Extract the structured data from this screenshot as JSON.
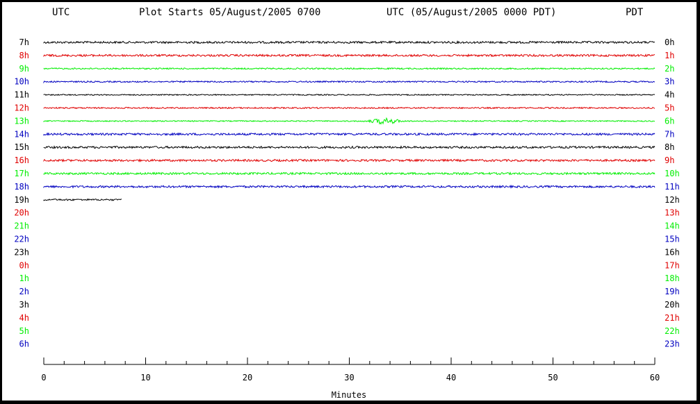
{
  "header": {
    "left_tz": "UTC",
    "plot_start": "Plot Starts 05/August/2005 0700",
    "utc_pdt": "UTC (05/August/2005 0000 PDT)",
    "right_tz": "PDT"
  },
  "colors": {
    "black": "#000000",
    "red": "#e00000",
    "green": "#00ee00",
    "blue": "#0000c0"
  },
  "chart_data": {
    "type": "line",
    "title": "Plot Starts 05/August/2005 0700",
    "xlabel": "Minutes",
    "xlim": [
      0,
      60
    ],
    "x_ticks": [
      "0",
      "10",
      "20",
      "30",
      "40",
      "50",
      "60"
    ],
    "rows": [
      {
        "left": "7h",
        "right": "0h",
        "color": "black",
        "end_minute": 60,
        "amplitude": 1.5
      },
      {
        "left": "8h",
        "right": "1h",
        "color": "red",
        "end_minute": 60,
        "amplitude": 1.5
      },
      {
        "left": "9h",
        "right": "2h",
        "color": "green",
        "end_minute": 60,
        "amplitude": 1.0
      },
      {
        "left": "10h",
        "right": "3h",
        "color": "blue",
        "end_minute": 60,
        "amplitude": 1.0
      },
      {
        "left": "11h",
        "right": "4h",
        "color": "black",
        "end_minute": 60,
        "amplitude": 0.8
      },
      {
        "left": "12h",
        "right": "5h",
        "color": "red",
        "end_minute": 60,
        "amplitude": 1.0
      },
      {
        "left": "13h",
        "right": "6h",
        "color": "green",
        "end_minute": 60,
        "amplitude": 0.8,
        "event": {
          "minute": 33.5,
          "width": 1.8,
          "amplitude": 4
        }
      },
      {
        "left": "14h",
        "right": "7h",
        "color": "blue",
        "end_minute": 60,
        "amplitude": 1.5
      },
      {
        "left": "15h",
        "right": "8h",
        "color": "black",
        "end_minute": 60,
        "amplitude": 1.5
      },
      {
        "left": "16h",
        "right": "9h",
        "color": "red",
        "end_minute": 60,
        "amplitude": 1.5
      },
      {
        "left": "17h",
        "right": "10h",
        "color": "green",
        "end_minute": 60,
        "amplitude": 1.5
      },
      {
        "left": "18h",
        "right": "11h",
        "color": "blue",
        "end_minute": 60,
        "amplitude": 1.5
      },
      {
        "left": "19h",
        "right": "12h",
        "color": "black",
        "end_minute": 7.7,
        "amplitude": 1.2
      },
      {
        "left": "20h",
        "right": "13h",
        "color": "red",
        "end_minute": 0
      },
      {
        "left": "21h",
        "right": "14h",
        "color": "green",
        "end_minute": 0
      },
      {
        "left": "22h",
        "right": "15h",
        "color": "blue",
        "end_minute": 0
      },
      {
        "left": "23h",
        "right": "16h",
        "color": "black",
        "end_minute": 0
      },
      {
        "left": "0h",
        "right": "17h",
        "color": "red",
        "end_minute": 0
      },
      {
        "left": "1h",
        "right": "18h",
        "color": "green",
        "end_minute": 0
      },
      {
        "left": "2h",
        "right": "19h",
        "color": "blue",
        "end_minute": 0
      },
      {
        "left": "3h",
        "right": "20h",
        "color": "black",
        "end_minute": 0
      },
      {
        "left": "4h",
        "right": "21h",
        "color": "red",
        "end_minute": 0
      },
      {
        "left": "5h",
        "right": "22h",
        "color": "green",
        "end_minute": 0
      },
      {
        "left": "6h",
        "right": "23h",
        "color": "blue",
        "end_minute": 0
      }
    ]
  }
}
